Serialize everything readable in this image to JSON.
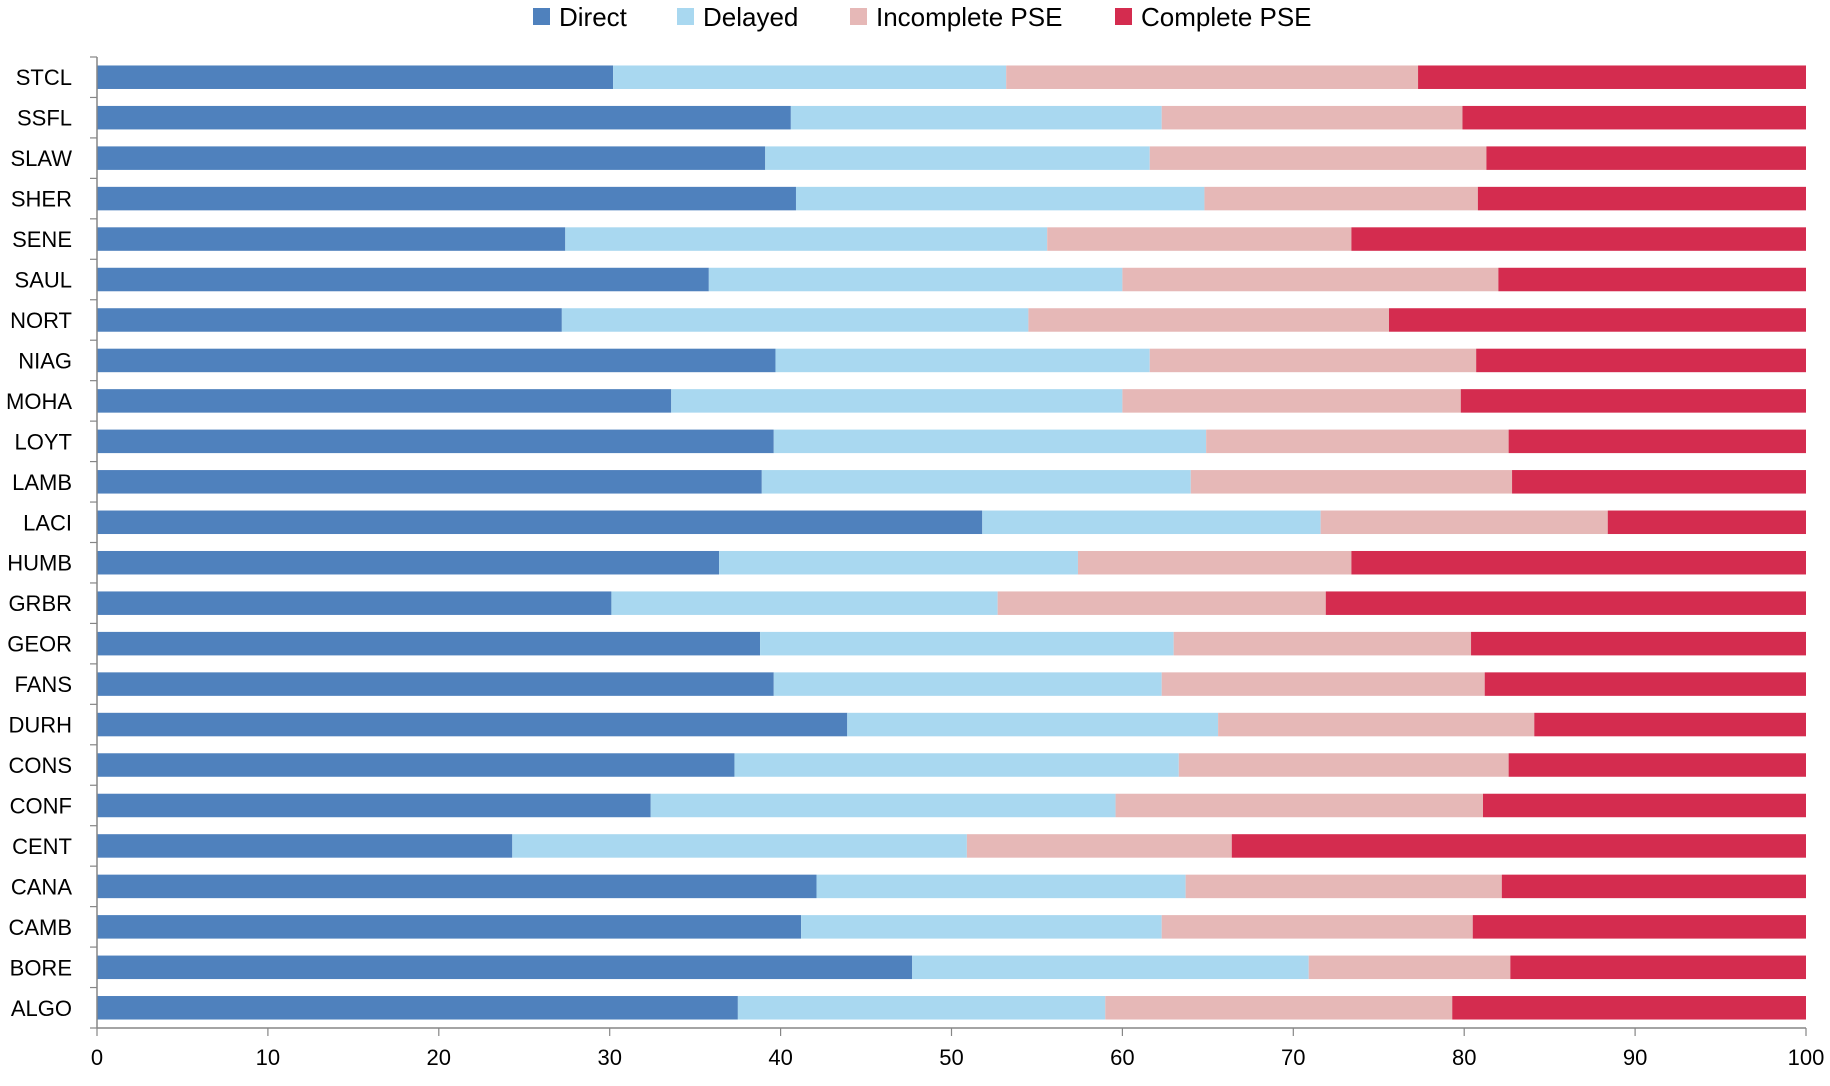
{
  "chart_data": {
    "type": "bar",
    "orientation": "horizontal",
    "stacked": true,
    "categories": [
      "STCL",
      "SSFL",
      "SLAW",
      "SHER",
      "SENE",
      "SAUL",
      "NORT",
      "NIAG",
      "MOHA",
      "LOYT",
      "LAMB",
      "LACI",
      "HUMB",
      "GRBR",
      "GEOR",
      "FANS",
      "DURH",
      "CONS",
      "CONF",
      "CENT",
      "CANA",
      "CAMB",
      "BORE",
      "ALGO"
    ],
    "series": [
      {
        "name": "Direct",
        "color": "#4F81BD",
        "values": [
          30.2,
          40.6,
          39.1,
          40.9,
          27.4,
          35.8,
          27.2,
          39.7,
          33.6,
          39.6,
          38.9,
          51.8,
          36.4,
          30.1,
          38.8,
          39.6,
          43.9,
          37.3,
          32.4,
          24.3,
          42.1,
          41.2,
          47.7,
          37.5
        ]
      },
      {
        "name": "Delayed",
        "color": "#A9D8F0",
        "values": [
          23.0,
          21.7,
          22.5,
          23.9,
          28.2,
          24.2,
          27.3,
          21.9,
          26.4,
          25.3,
          25.1,
          19.8,
          21.0,
          22.6,
          24.2,
          22.7,
          21.7,
          26.0,
          27.2,
          26.6,
          21.6,
          21.1,
          23.2,
          21.5
        ]
      },
      {
        "name": "Incomplete PSE",
        "color": "#E6B8B7",
        "values": [
          24.1,
          17.6,
          19.7,
          16.0,
          17.8,
          22.0,
          21.1,
          19.1,
          19.8,
          17.7,
          18.8,
          16.8,
          16.0,
          19.2,
          17.4,
          18.9,
          18.5,
          19.3,
          21.5,
          15.5,
          18.5,
          18.2,
          11.8,
          20.3
        ]
      },
      {
        "name": "Complete PSE",
        "color": "#D42C4F",
        "values": [
          22.7,
          20.1,
          18.7,
          19.2,
          26.6,
          18.0,
          24.4,
          19.3,
          20.2,
          17.4,
          17.2,
          11.6,
          26.6,
          28.1,
          19.6,
          18.8,
          15.9,
          17.4,
          18.9,
          33.6,
          17.8,
          19.5,
          17.3,
          20.7
        ]
      }
    ],
    "xlim": [
      0,
      100
    ],
    "xticks": [
      "0",
      "10",
      "20",
      "30",
      "40",
      "50",
      "60",
      "70",
      "80",
      "90",
      "100"
    ],
    "title": "",
    "xlabel": "",
    "ylabel": "",
    "grid": false,
    "legend_position": "top"
  }
}
